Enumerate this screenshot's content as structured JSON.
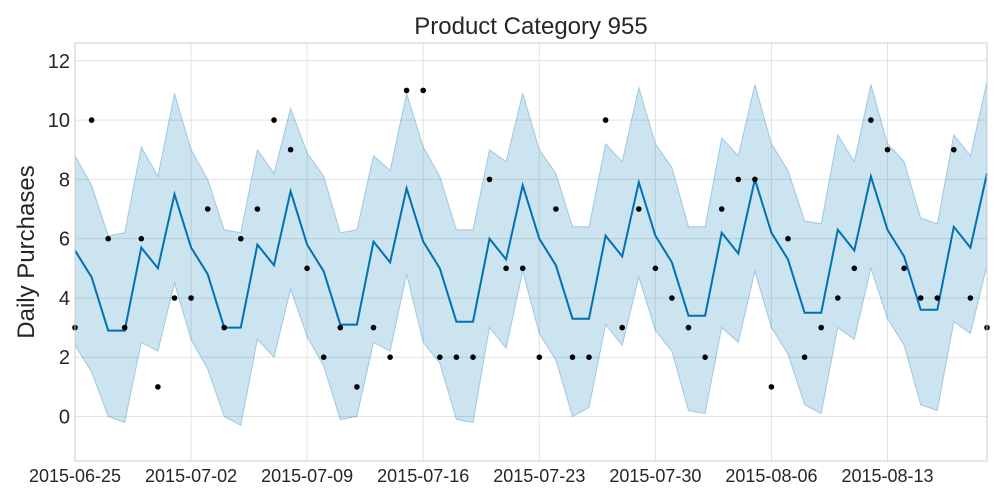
{
  "chart_data": {
    "type": "line",
    "title": "Product Category 955",
    "xlabel": "",
    "ylabel": "Daily Purchases",
    "xlim": [
      "2015-06-25",
      "2015-08-19"
    ],
    "ylim": [
      -1.5,
      12.6
    ],
    "y_ticks": [
      0,
      2,
      4,
      6,
      8,
      10,
      12
    ],
    "x_ticks": [
      "2015-06-25",
      "2015-07-02",
      "2015-07-09",
      "2015-07-16",
      "2015-07-23",
      "2015-07-30",
      "2015-08-06",
      "2015-08-13"
    ],
    "grid": true,
    "x": [
      "2015-06-25",
      "2015-06-26",
      "2015-06-27",
      "2015-06-28",
      "2015-06-29",
      "2015-06-30",
      "2015-07-01",
      "2015-07-02",
      "2015-07-03",
      "2015-07-04",
      "2015-07-05",
      "2015-07-06",
      "2015-07-07",
      "2015-07-08",
      "2015-07-09",
      "2015-07-10",
      "2015-07-11",
      "2015-07-12",
      "2015-07-13",
      "2015-07-14",
      "2015-07-15",
      "2015-07-16",
      "2015-07-17",
      "2015-07-18",
      "2015-07-19",
      "2015-07-20",
      "2015-07-21",
      "2015-07-22",
      "2015-07-23",
      "2015-07-24",
      "2015-07-25",
      "2015-07-26",
      "2015-07-27",
      "2015-07-28",
      "2015-07-29",
      "2015-07-30",
      "2015-07-31",
      "2015-08-01",
      "2015-08-02",
      "2015-08-03",
      "2015-08-04",
      "2015-08-05",
      "2015-08-06",
      "2015-08-07",
      "2015-08-08",
      "2015-08-09",
      "2015-08-10",
      "2015-08-11",
      "2015-08-12",
      "2015-08-13",
      "2015-08-14",
      "2015-08-15",
      "2015-08-16",
      "2015-08-17",
      "2015-08-18",
      "2015-08-19"
    ],
    "series": [
      {
        "role": "observed",
        "style": "points",
        "color": "#000000",
        "values": [
          3,
          10,
          6,
          3,
          6,
          1,
          4,
          4,
          7,
          3,
          6,
          7,
          10,
          9,
          5,
          2,
          3,
          1,
          3,
          2,
          11,
          11,
          2,
          2,
          2,
          8,
          5,
          5,
          2,
          7,
          2,
          2,
          10,
          3,
          7,
          5,
          4,
          3,
          2,
          7,
          8,
          8,
          1,
          6,
          2,
          3,
          4,
          5,
          10,
          9,
          5,
          4,
          4,
          9,
          4,
          3
        ]
      },
      {
        "role": "forecast",
        "style": "line",
        "color": "#0072b2",
        "values": [
          5.6,
          4.7,
          2.9,
          2.9,
          5.7,
          5.0,
          7.5,
          5.7,
          4.8,
          3.0,
          3.0,
          5.8,
          5.1,
          7.6,
          5.8,
          4.9,
          3.1,
          3.1,
          5.9,
          5.2,
          7.7,
          5.9,
          5.0,
          3.2,
          3.2,
          6.0,
          5.3,
          7.8,
          6.0,
          5.1,
          3.3,
          3.3,
          6.1,
          5.4,
          7.9,
          6.1,
          5.2,
          3.4,
          3.4,
          6.2,
          5.5,
          8.0,
          6.2,
          5.3,
          3.5,
          3.5,
          6.3,
          5.6,
          8.1,
          6.3,
          5.4,
          3.6,
          3.6,
          6.4,
          5.7,
          8.2
        ]
      },
      {
        "role": "uncertainty-upper",
        "style": "band",
        "color": "#0072b2",
        "values": [
          8.8,
          7.8,
          6.1,
          6.2,
          9.1,
          8.1,
          10.9,
          9.0,
          8.0,
          6.3,
          6.2,
          9.0,
          8.2,
          10.4,
          8.9,
          8.1,
          6.2,
          6.3,
          8.8,
          8.3,
          10.9,
          9.1,
          8.1,
          6.3,
          6.3,
          9.0,
          8.6,
          10.9,
          9.0,
          8.2,
          6.4,
          6.4,
          9.2,
          8.6,
          11.1,
          9.2,
          8.4,
          6.4,
          6.4,
          9.4,
          8.8,
          11.2,
          9.2,
          8.3,
          6.6,
          6.5,
          9.5,
          8.6,
          11.2,
          9.2,
          8.6,
          6.7,
          6.5,
          9.5,
          8.8,
          11.3
        ]
      },
      {
        "role": "uncertainty-lower",
        "style": "band",
        "color": "#0072b2",
        "values": [
          2.4,
          1.5,
          0.0,
          -0.2,
          2.5,
          2.2,
          4.5,
          2.6,
          1.6,
          0.0,
          -0.3,
          2.6,
          2.0,
          4.3,
          2.7,
          1.7,
          -0.1,
          0.0,
          2.5,
          2.2,
          4.8,
          2.5,
          1.8,
          -0.1,
          -0.2,
          3.0,
          2.3,
          4.9,
          2.8,
          1.9,
          0.0,
          0.3,
          3.1,
          2.4,
          4.7,
          2.9,
          2.2,
          0.2,
          0.1,
          3.0,
          2.5,
          4.9,
          3.0,
          2.1,
          0.4,
          0.1,
          3.0,
          2.6,
          5.0,
          3.3,
          2.4,
          0.4,
          0.2,
          3.2,
          2.8,
          5.1
        ]
      }
    ]
  }
}
